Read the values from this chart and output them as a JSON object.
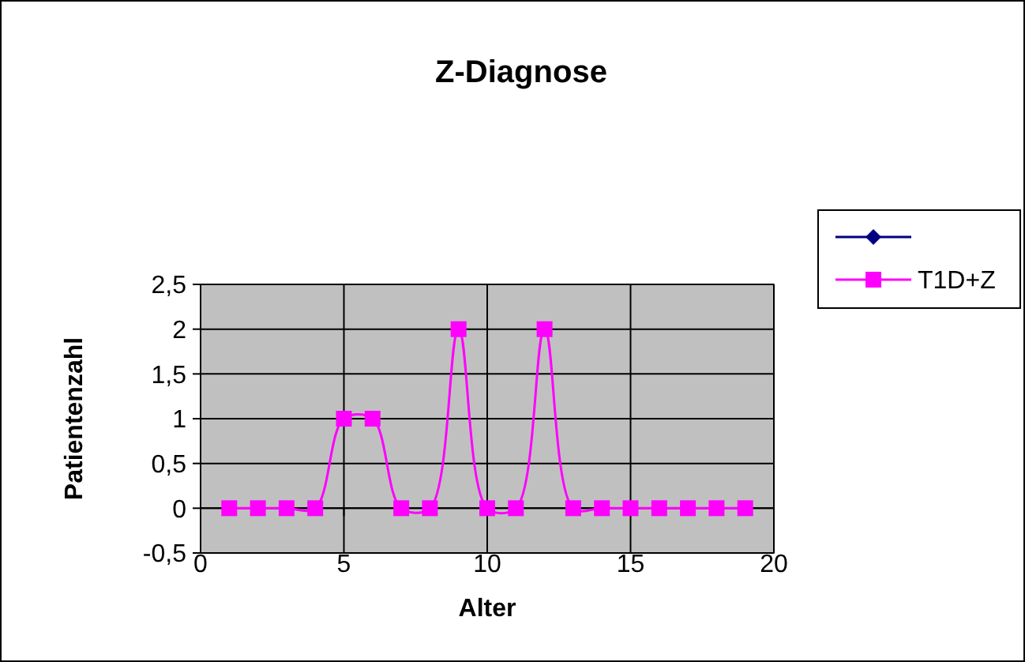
{
  "chart_data": {
    "type": "line",
    "title": "Z-Diagnose",
    "xlabel": "Alter",
    "ylabel": "Patientenzahl",
    "x": [
      1,
      2,
      3,
      4,
      5,
      6,
      7,
      8,
      9,
      10,
      11,
      12,
      13,
      14,
      15,
      16,
      17,
      18,
      19
    ],
    "series": [
      {
        "color": "#000080",
        "marker": "diamond",
        "values": [
          null,
          null,
          null,
          null,
          null,
          null,
          null,
          null,
          null,
          null,
          null,
          null,
          null,
          null,
          null,
          null,
          null,
          null,
          null
        ]
      },
      {
        "name": "T1D+Z",
        "color": "#ff00ff",
        "marker": "square",
        "values": [
          0,
          0,
          0,
          0,
          1,
          1,
          0,
          0,
          2,
          0,
          0,
          2,
          0,
          0,
          0,
          0,
          0,
          0,
          0
        ]
      }
    ],
    "xlim": [
      0,
      20
    ],
    "xticks": [
      0,
      5,
      10,
      15,
      20
    ],
    "ylim": [
      -0.5,
      2.5
    ],
    "yticks": [
      {
        "value": -0.5,
        "label": "-0,5"
      },
      0,
      {
        "value": 0.5,
        "label": "0,5"
      },
      1,
      {
        "value": 1.5,
        "label": "1,5"
      },
      2,
      {
        "value": 2.5,
        "label": "2,5"
      }
    ],
    "grid": true,
    "legend": "right"
  }
}
